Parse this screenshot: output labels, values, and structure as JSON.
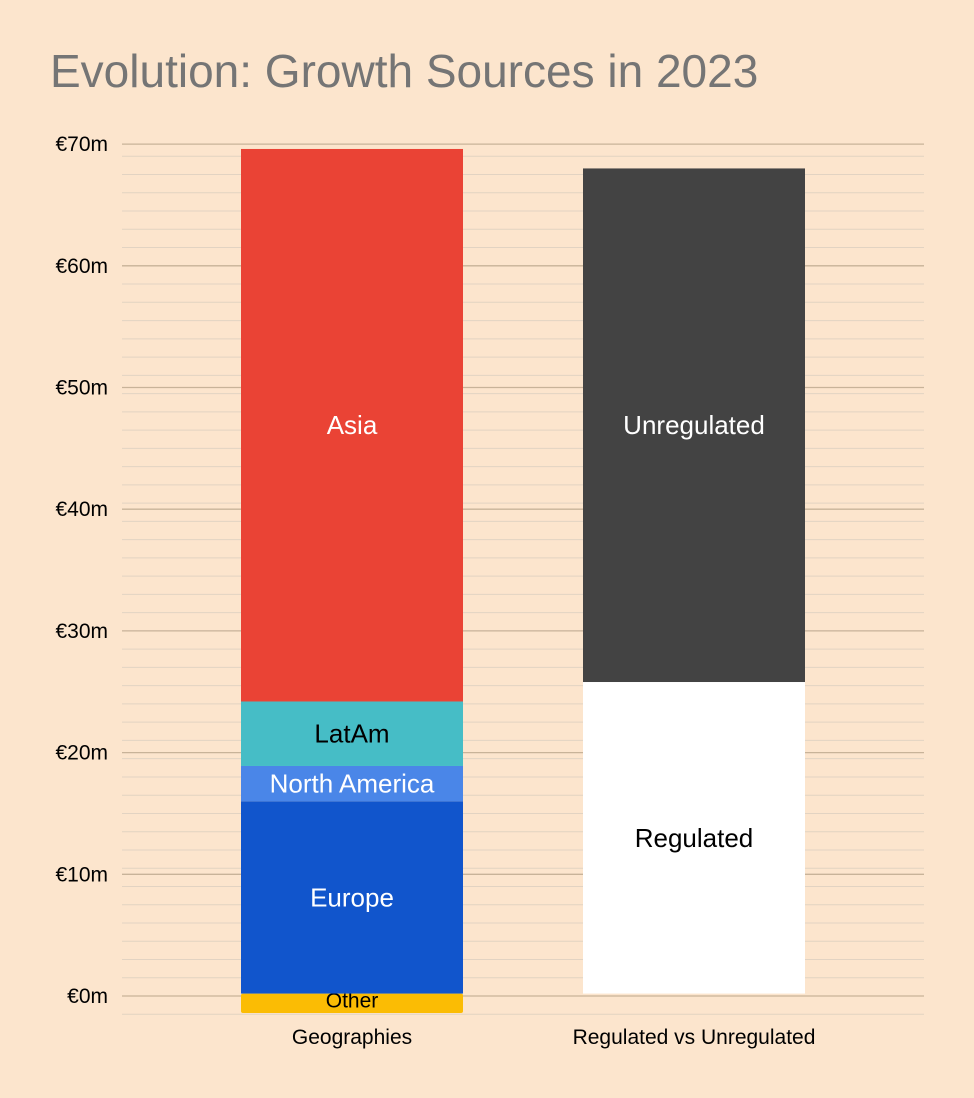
{
  "chart_data": {
    "type": "bar",
    "stacked": true,
    "title": "Evolution: Growth Sources in 2023",
    "xlabel": "",
    "ylabel": "",
    "ylim": [
      -1.5,
      70
    ],
    "yticks": [
      0,
      10,
      20,
      30,
      40,
      50,
      60,
      70
    ],
    "ytick_labels": [
      "€0m",
      "€10m",
      "€20m",
      "€30m",
      "€40m",
      "€50m",
      "€60m",
      "€70m"
    ],
    "grid": true,
    "categories": [
      "Geographies",
      "Regulated vs Unregulated"
    ],
    "series": [
      {
        "name": "Other",
        "category": "Geographies",
        "start": -1.4,
        "end": 0.2,
        "color": "#fbbc04",
        "label_color": "#000000"
      },
      {
        "name": "Europe",
        "category": "Geographies",
        "start": 0.2,
        "end": 16.0,
        "color": "#1155cc",
        "label_color": "#ffffff"
      },
      {
        "name": "North America",
        "category": "Geographies",
        "start": 16.0,
        "end": 18.9,
        "color": "#4a86e8",
        "label_color": "#ffffff"
      },
      {
        "name": "LatAm",
        "category": "Geographies",
        "start": 18.9,
        "end": 24.2,
        "color": "#46bdc6",
        "label_color": "#000000"
      },
      {
        "name": "Asia",
        "category": "Geographies",
        "start": 24.2,
        "end": 69.6,
        "color": "#ea4335",
        "label_color": "#ffffff"
      },
      {
        "name": "Regulated",
        "category": "Regulated vs Unregulated",
        "start": 0.2,
        "end": 25.8,
        "color": "#ffffff",
        "label_color": "#000000"
      },
      {
        "name": "Unregulated",
        "category": "Regulated vs Unregulated",
        "start": 25.8,
        "end": 68.0,
        "color": "#434343",
        "label_color": "#ffffff"
      }
    ]
  }
}
